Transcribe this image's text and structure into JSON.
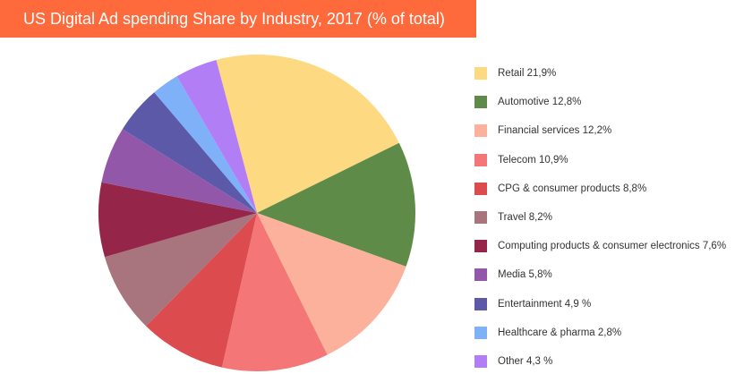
{
  "chart_data": {
    "type": "pie",
    "title": "US Digital Ad spending Share by Industry, 2017 (% of total)",
    "slices": [
      {
        "label": "Retail 21,9%",
        "value": 21.9,
        "color": "#fdd982"
      },
      {
        "label": "Automotive 12,8%",
        "value": 12.8,
        "color": "#5e8b47"
      },
      {
        "label": "Financial services 12,2%",
        "value": 12.2,
        "color": "#fbb19c"
      },
      {
        "label": "Telecom 10,9%",
        "value": 10.9,
        "color": "#f47676"
      },
      {
        "label": "CPG & consumer products 8,8%",
        "value": 8.8,
        "color": "#dc4b4d"
      },
      {
        "label": "Travel 8,2%",
        "value": 8.2,
        "color": "#a8747d"
      },
      {
        "label": "Computing products & consumer electronics 7,6%",
        "value": 7.6,
        "color": "#95264a"
      },
      {
        "label": "Media 5,8%",
        "value": 5.8,
        "color": "#9357aa"
      },
      {
        "label": "Entertainment 4,9 %",
        "value": 4.9,
        "color": "#5c5aa8"
      },
      {
        "label": "Healthcare & pharma 2,8%",
        "value": 2.8,
        "color": "#7eb1f8"
      },
      {
        "label": "Other 4,3 %",
        "value": 4.3,
        "color": "#b17ef6"
      }
    ],
    "legend_position": "right"
  },
  "colors": {
    "title_background": "#ff6a3d",
    "title_text": "#ffffff"
  }
}
